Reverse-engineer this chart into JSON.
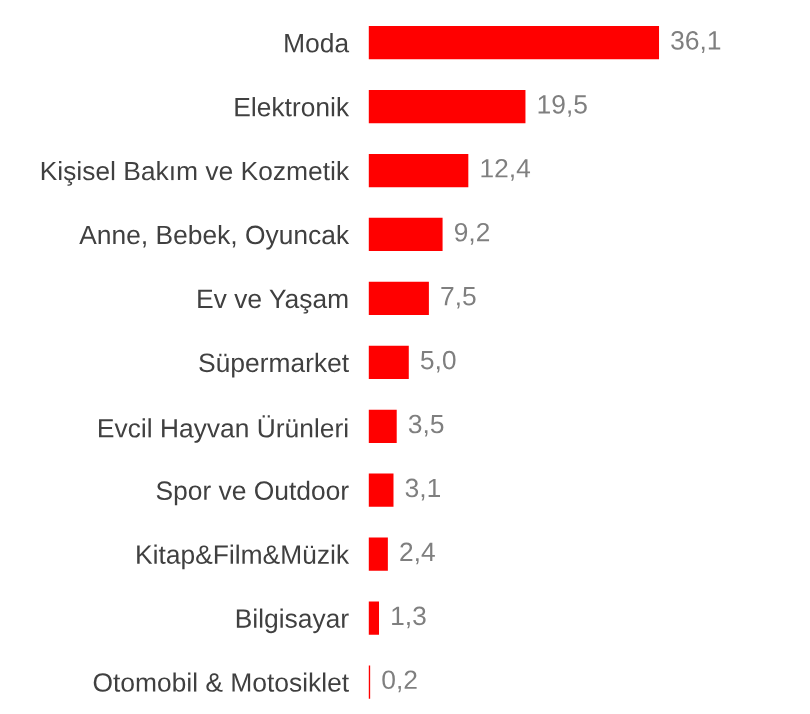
{
  "chart_data": {
    "type": "bar",
    "orientation": "horizontal",
    "categories": [
      "Moda",
      "Elektronik",
      "Kişisel Bakım ve Kozmetik",
      "Anne, Bebek, Oyuncak",
      "Ev ve Yaşam",
      "Süpermarket",
      "Evcil Hayvan Ürünleri",
      "Spor ve Outdoor",
      "Kitap&Film&Müzik",
      "Bilgisayar",
      "Otomobil & Motosiklet"
    ],
    "values": [
      36.1,
      19.5,
      12.4,
      9.2,
      7.5,
      5.0,
      3.5,
      3.1,
      2.4,
      1.3,
      0.2
    ],
    "value_labels": [
      "36,1",
      "19,5",
      "12,4",
      "9,2",
      "7,5",
      "5,0",
      "3,5",
      "3,1",
      "2,4",
      "1,3",
      "0,2"
    ],
    "color": "#ff0000"
  }
}
